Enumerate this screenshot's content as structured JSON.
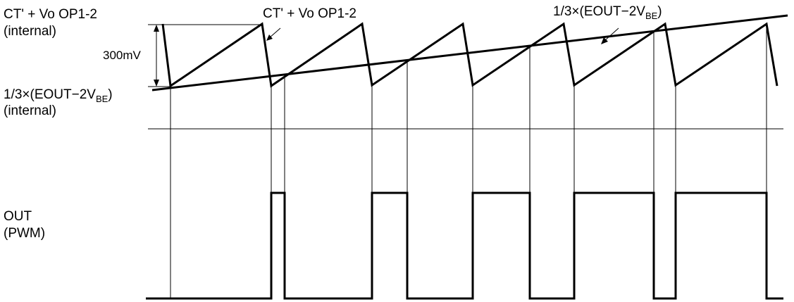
{
  "labels": {
    "ramp_left_line1": "CT' + Vo OP1-2",
    "ramp_left_line2": "(internal)",
    "ramp_top": "CT' + Vo OP1-2",
    "amplitude": "300mV",
    "ref_left_main": "1/3×(EOUT−2V",
    "ref_left_sub": "BE",
    "ref_left_close": ")",
    "ref_left_line2": "(internal)",
    "ref_top_main": "1/3×(EOUT−2V",
    "ref_top_sub": "BE",
    "ref_top_close": ")",
    "out_line1": "OUT",
    "out_line2": "(PWM)"
  }
}
